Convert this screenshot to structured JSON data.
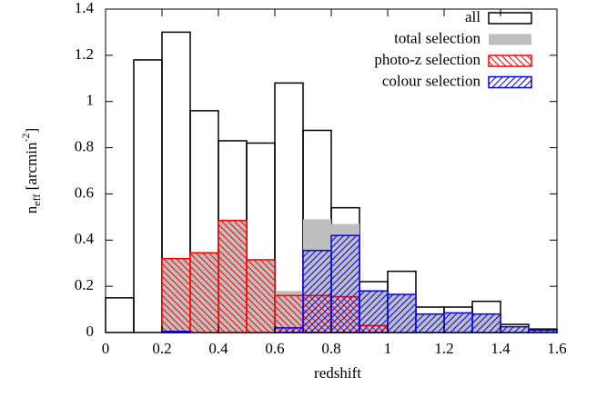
{
  "chart_data": {
    "type": "histogram",
    "x_label": "redshift",
    "y_label": {
      "base": "n",
      "sub": "eff",
      "main": " [arcmin",
      "sup": "-2",
      "end": "]"
    },
    "bins": [
      0,
      0.1,
      0.2,
      0.3,
      0.4,
      0.5,
      0.6,
      0.7,
      0.8,
      0.9,
      1.0,
      1.1,
      1.2,
      1.3,
      1.4,
      1.5,
      1.6
    ],
    "series": [
      {
        "name": "all",
        "color": "#000000",
        "style": "outline",
        "values": [
          0.15,
          1.18,
          1.3,
          0.96,
          0.83,
          0.82,
          1.08,
          0.875,
          0.54,
          0.22,
          0.265,
          0.11,
          0.11,
          0.135,
          0.035,
          0.015
        ]
      },
      {
        "name": "total selection",
        "color": "#bebebe",
        "style": "solid",
        "values": [
          0,
          0,
          0.32,
          0.345,
          0.485,
          0.315,
          0.18,
          0.49,
          0.47,
          0.18,
          0.165,
          0.08,
          0.085,
          0.08,
          0.025,
          0.01
        ]
      },
      {
        "name": "photo-z selection",
        "color": "#ff0000",
        "style": "hatch-back",
        "values": [
          0,
          0,
          0.32,
          0.345,
          0.485,
          0.315,
          0.16,
          0.16,
          0.155,
          0.03,
          0,
          0,
          0,
          0,
          0,
          0
        ]
      },
      {
        "name": "colour selection",
        "color": "#0000ff",
        "style": "hatch-forward",
        "values": [
          0,
          0,
          0.005,
          0,
          0,
          0,
          0.02,
          0.355,
          0.42,
          0.18,
          0.165,
          0.08,
          0.085,
          0.08,
          0.025,
          0.01
        ]
      }
    ],
    "xlim": [
      0,
      1.6
    ],
    "ylim": [
      0,
      1.4
    ],
    "xticks": [
      0,
      0.2,
      0.4,
      0.6,
      0.8,
      1,
      1.2,
      1.4,
      1.6
    ],
    "yticks": [
      0,
      0.2,
      0.4,
      0.6,
      0.8,
      1,
      1.2,
      1.4
    ],
    "legend": "top-right"
  }
}
